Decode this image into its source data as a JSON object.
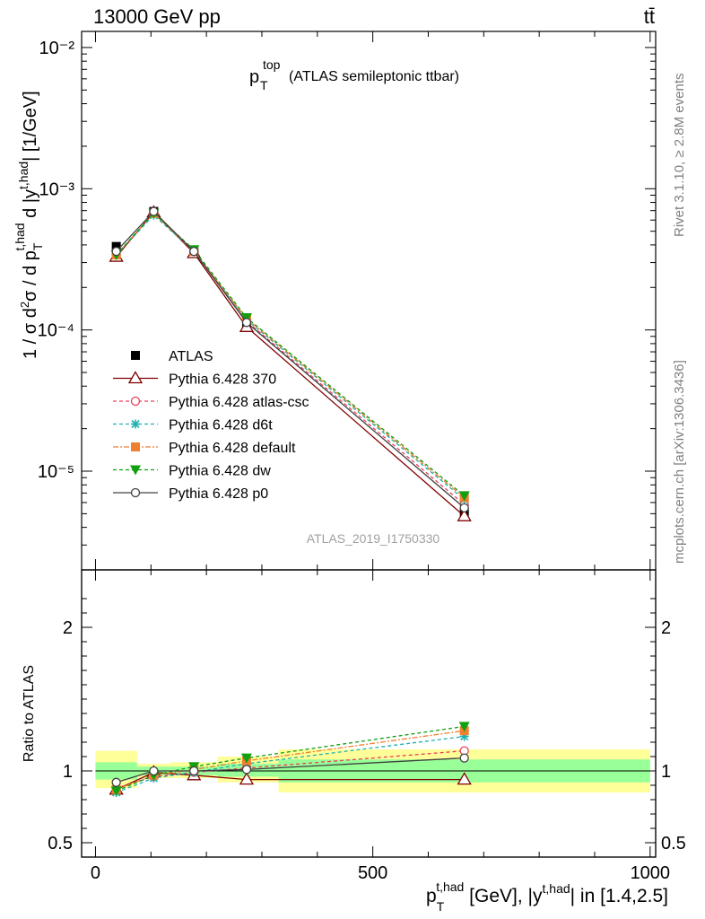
{
  "header": {
    "energy_label": "13000 GeV pp",
    "process_label": "tt̄"
  },
  "side_labels": {
    "rivet": "Rivet 3.1.10, ≥ 2.8M events",
    "mcplots": "mcplots.cern.ch [arXiv:1306.3436]"
  },
  "chart_data": [
    {
      "type": "line",
      "panel": "main",
      "title_main": "p",
      "title_sup": "top",
      "title_sub": "T",
      "title_rest": "(ATLAS semileptonic ttbar)",
      "ylabel": "1 / σ d²σ / d p_T^{t,had} d |y^{t,had}| [1/GeV]",
      "yscale": "log",
      "ylim": [
        2e-06,
        0.013
      ],
      "y_ticks": [
        "10⁻²",
        "10⁻³",
        "10⁻⁴",
        "10⁻⁵"
      ],
      "xlim": [
        -25,
        1010
      ],
      "x": [
        37.5,
        105,
        177.5,
        272.5,
        665
      ],
      "watermark": "ATLAS_2019_I1750330",
      "legend_position": "center-left",
      "series": [
        {
          "name": "ATLAS",
          "color": "#000000",
          "marker": "square",
          "dash": "",
          "values": [
            0.00039,
            0.00069,
            0.00036,
            0.000112,
            5.1e-06
          ]
        },
        {
          "name": "Pythia 6.428 370",
          "color": "#800000",
          "marker": "triangle-open",
          "dash": "",
          "values": [
            0.00033,
            0.00068,
            0.00035,
            0.000105,
            4.8e-06
          ]
        },
        {
          "name": "Pythia 6.428 atlas-csc",
          "color": "#e8405c",
          "marker": "circle-open",
          "dash": "4,3",
          "values": [
            0.00034,
            0.00067,
            0.00036,
            0.000115,
            5.8e-06
          ]
        },
        {
          "name": "Pythia 6.428 d6t",
          "color": "#20b0b0",
          "marker": "star",
          "dash": "4,3",
          "values": [
            0.00034,
            0.00065,
            0.00036,
            0.000118,
            6.3e-06
          ]
        },
        {
          "name": "Pythia 6.428 default",
          "color": "#f08030",
          "marker": "square-filled",
          "dash": "6,2,2,2",
          "values": [
            0.00034,
            0.00067,
            0.00036,
            0.00012,
            6.5e-06
          ]
        },
        {
          "name": "Pythia 6.428 dw",
          "color": "#10a010",
          "marker": "triangle-down-filled",
          "dash": "4,3",
          "values": [
            0.00034,
            0.00067,
            0.00037,
            0.000122,
            6.7e-06
          ]
        },
        {
          "name": "Pythia 6.428 p0",
          "color": "#404040",
          "marker": "circle-open",
          "dash": "",
          "values": [
            0.00036,
            0.00069,
            0.00036,
            0.000113,
            5.5e-06
          ]
        }
      ]
    },
    {
      "type": "line",
      "panel": "ratio",
      "ylabel": "Ratio to ATLAS",
      "xlabel": "p_T^{t,had} [GeV], |y^{t,had}| in [1.4,2.5]",
      "ylim": [
        0.4,
        2.4
      ],
      "y_ticks": [
        "0.5",
        "1",
        "2"
      ],
      "xlim": [
        -25,
        1010
      ],
      "x_ticks": [
        "0",
        "500",
        "1000"
      ],
      "x": [
        37.5,
        105,
        177.5,
        272.5,
        665
      ],
      "bands": [
        {
          "x_from": 0,
          "x_to": 75,
          "inner": [
            0.94,
            1.06
          ],
          "outer": [
            0.88,
            1.14
          ]
        },
        {
          "x_from": 75,
          "x_to": 135,
          "inner": [
            0.97,
            1.03
          ],
          "outer": [
            0.95,
            1.05
          ]
        },
        {
          "x_from": 135,
          "x_to": 220,
          "inner": [
            0.97,
            1.03
          ],
          "outer": [
            0.95,
            1.06
          ]
        },
        {
          "x_from": 220,
          "x_to": 330,
          "inner": [
            0.96,
            1.05
          ],
          "outer": [
            0.92,
            1.1
          ]
        },
        {
          "x_from": 330,
          "x_to": 1000,
          "inner": [
            0.92,
            1.08
          ],
          "outer": [
            0.85,
            1.15
          ]
        }
      ],
      "series": [
        {
          "name": "Pythia 6.428 370",
          "color": "#800000",
          "marker": "triangle-open",
          "dash": "",
          "values": [
            0.87,
            0.99,
            0.97,
            0.94,
            0.94
          ]
        },
        {
          "name": "Pythia 6.428 atlas-csc",
          "color": "#e8405c",
          "marker": "circle-open",
          "dash": "4,3",
          "values": [
            0.88,
            0.96,
            0.99,
            1.02,
            1.14
          ]
        },
        {
          "name": "Pythia 6.428 d6t",
          "color": "#20b0b0",
          "marker": "star",
          "dash": "4,3",
          "values": [
            0.85,
            0.95,
            0.99,
            1.05,
            1.24
          ]
        },
        {
          "name": "Pythia 6.428 default",
          "color": "#f08030",
          "marker": "square-filled",
          "dash": "6,2,2,2",
          "values": [
            0.87,
            0.97,
            1.01,
            1.07,
            1.28
          ]
        },
        {
          "name": "Pythia 6.428 dw",
          "color": "#10a010",
          "marker": "triangle-down-filled",
          "dash": "4,3",
          "values": [
            0.86,
            0.97,
            1.03,
            1.09,
            1.31
          ]
        },
        {
          "name": "Pythia 6.428 p0",
          "color": "#404040",
          "marker": "circle-open",
          "dash": "",
          "values": [
            0.92,
            1.0,
            1.0,
            1.01,
            1.09
          ]
        }
      ]
    }
  ]
}
